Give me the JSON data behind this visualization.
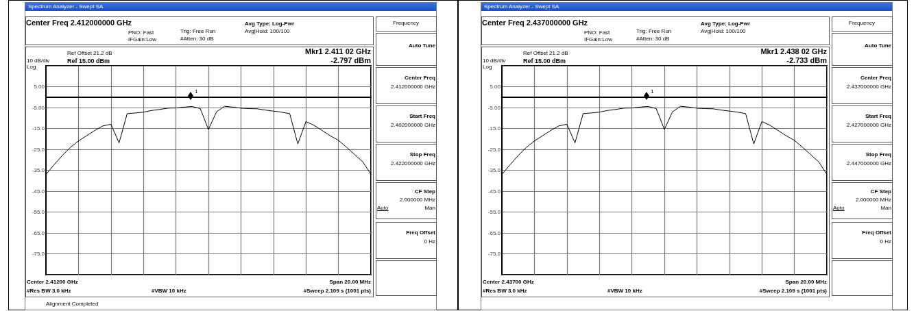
{
  "chart_data": [
    {
      "type": "line",
      "title": "Spectrum Analyzer - Swept SA",
      "marker": "none",
      "grid": true,
      "tick_labels": "y",
      "annotations": [
        "Center Freq 2.412000000 GHz",
        "PNO: Fast",
        "IFGain:Low",
        "Trig: Free Run",
        "#Atten: 30 dB",
        "Avg Type: Log-Pwr",
        "Avg|Hold: 100/100",
        "Ref Offset 21.2 dB",
        "Ref 15.00 dBm",
        "10 dB/div",
        "Log",
        "Mkr1 2.411 02 GHz",
        "-2.797 dBm",
        "Center 2.41200 GHz",
        "Span 20.00 MHz",
        "#Res BW 3.0 kHz",
        "#VBW 10 kHz",
        "#Sweep  2.109 s (1001 pts)",
        "1",
        "Frequency",
        "Auto Tune",
        "Center Freq",
        "2.412000000 GHz",
        "Start Freq",
        "2.402000000 GHz",
        "Stop Freq",
        "2.422000000 GHz",
        "CF Step",
        "2.000000 MHz",
        "Auto",
        "Man",
        "Freq Offset",
        "0 Hz",
        "Alignment Completed"
      ],
      "categories": [
        null,
        null,
        null,
        null,
        null,
        null,
        null,
        null,
        null,
        null,
        null,
        null,
        null,
        null,
        null,
        null,
        null,
        null,
        null,
        null,
        null,
        null,
        null,
        null,
        null,
        null,
        null,
        null,
        null,
        null,
        null,
        null,
        null,
        null,
        null,
        null,
        null,
        null,
        null,
        null,
        null
      ],
      "ylim": [
        -85,
        15
      ],
      "yticks": [
        {
          "value": 15,
          "label": null
        },
        {
          "value": 5,
          "label": "5.00"
        },
        {
          "value": -5,
          "label": "-5.00"
        },
        {
          "value": -15,
          "label": "-15.0"
        },
        {
          "value": -25,
          "label": "-25.0"
        },
        {
          "value": -35,
          "label": "-35.0"
        },
        {
          "value": -45,
          "label": "-45.0"
        },
        {
          "value": -55,
          "label": "-55.0"
        },
        {
          "value": -65,
          "label": "-65.0"
        },
        {
          "value": -75,
          "label": "-75.0"
        },
        {
          "value": -85,
          "label": null
        }
      ],
      "series": [
        {
          "color": "#000000",
          "values": [
            -37,
            -32.4,
            -28,
            -24.1,
            -21,
            -18.5,
            -16,
            -13.8,
            -13,
            -21.9,
            -7.9,
            -7.6,
            -7.2,
            -6.4,
            -5.9,
            -5.3,
            -5.2,
            -4.8,
            -4.5,
            -5.5,
            -15.5,
            -7,
            -4.4,
            -4.8,
            -5.3,
            -5.5,
            -5.6,
            -6.2,
            -6.7,
            -7.2,
            -7.9,
            -22.4,
            -11.7,
            -13.5,
            -16,
            -18.5,
            -20.7,
            -24,
            -27.5,
            -31,
            -37
          ]
        }
      ]
    },
    {
      "type": "line",
      "title": "Spectrum Analyzer - Swept SA",
      "marker": "none",
      "grid": true,
      "tick_labels": "y",
      "annotations": [
        "Center Freq 2.437000000 GHz",
        "PNO: Fast",
        "IFGain:Low",
        "Trig: Free Run",
        "#Atten: 30 dB",
        "Avg Type: Log-Pwr",
        "Avg|Hold: 100/100",
        "Ref Offset 21.2 dB",
        "Ref 15.00 dBm",
        "10 dB/div",
        "Log",
        "Mkr1 2.438 02 GHz",
        "-2.733 dBm",
        "Center 2.43700 GHz",
        "Span 20.00 MHz",
        "#Res BW 3.0 kHz",
        "#VBW 10 kHz",
        "#Sweep  2.109 s (1001 pts)",
        "1",
        "Frequency",
        "Auto Tune",
        "Center Freq",
        "2.437000000 GHz",
        "Start Freq",
        "2.427000000 GHz",
        "Stop Freq",
        "2.447000000 GHz",
        "CF Step",
        "2.000000 MHz",
        "Auto",
        "Man",
        "Freq Offset",
        "0 Hz"
      ],
      "categories": [
        null,
        null,
        null,
        null,
        null,
        null,
        null,
        null,
        null,
        null,
        null,
        null,
        null,
        null,
        null,
        null,
        null,
        null,
        null,
        null,
        null,
        null,
        null,
        null,
        null,
        null,
        null,
        null,
        null,
        null,
        null,
        null,
        null,
        null,
        null,
        null,
        null,
        null,
        null,
        null,
        null
      ],
      "ylim": [
        -85,
        15
      ],
      "yticks": [
        {
          "value": 15,
          "label": null
        },
        {
          "value": 5,
          "label": "5.00"
        },
        {
          "value": -5,
          "label": "-5.00"
        },
        {
          "value": -15,
          "label": "-15.0"
        },
        {
          "value": -25,
          "label": "-25.0"
        },
        {
          "value": -35,
          "label": "-35.0"
        },
        {
          "value": -45,
          "label": "-45.0"
        },
        {
          "value": -55,
          "label": "-55.0"
        },
        {
          "value": -65,
          "label": "-65.0"
        },
        {
          "value": -75,
          "label": "-75.0"
        },
        {
          "value": -85,
          "label": null
        }
      ],
      "series": [
        {
          "color": "#000000",
          "values": [
            -37,
            -32.4,
            -28,
            -24.1,
            -21,
            -18.5,
            -16,
            -13.8,
            -13,
            -21.9,
            -7.9,
            -7.6,
            -7.2,
            -6.4,
            -5.9,
            -5.3,
            -5.2,
            -4.8,
            -4.5,
            -5.5,
            -15.5,
            -7,
            -4.4,
            -4.8,
            -5.3,
            -5.5,
            -5.6,
            -6.2,
            -6.7,
            -7.2,
            -7.9,
            -22.4,
            -11.7,
            -13.5,
            -16,
            -18.5,
            -20.7,
            -24,
            -27.5,
            -31,
            -37
          ]
        }
      ]
    }
  ]
}
